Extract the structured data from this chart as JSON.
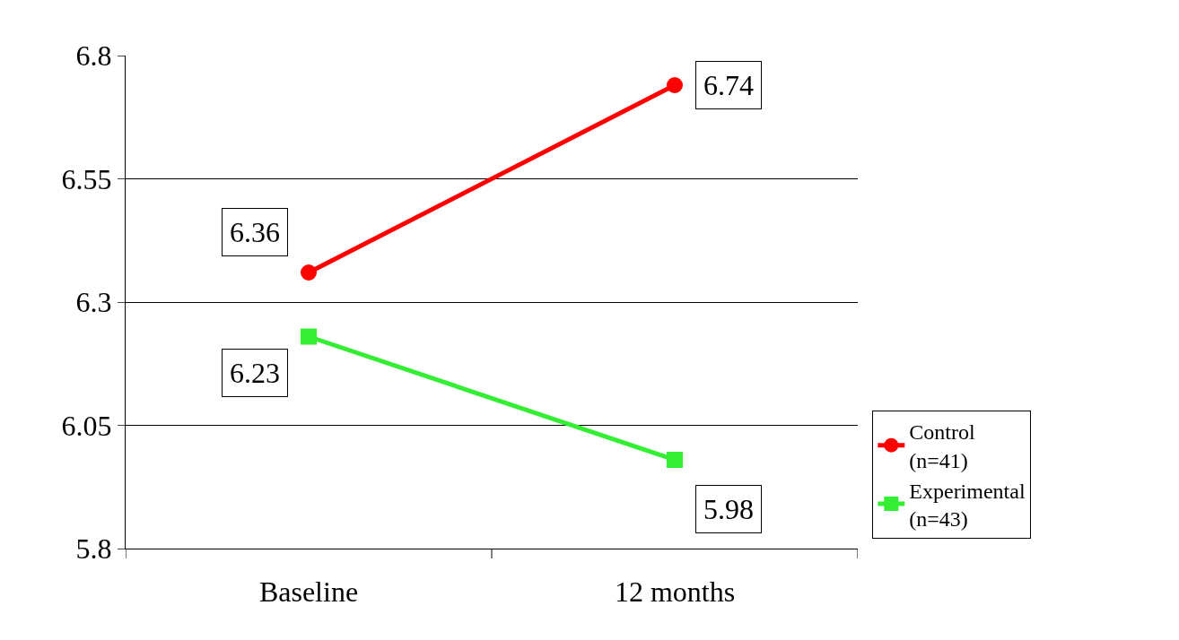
{
  "chart_data": {
    "type": "line",
    "categories": [
      "Baseline",
      "12 months"
    ],
    "series": [
      {
        "name": "Control\n(n=41)",
        "color": "#ff0000",
        "marker": "circle",
        "values": [
          6.36,
          6.74
        ]
      },
      {
        "name": "Experimental\n(n=43)",
        "color": "#33ee33",
        "marker": "square",
        "values": [
          6.23,
          5.98
        ]
      }
    ],
    "ylim": [
      5.8,
      6.8
    ],
    "yticks": [
      5.8,
      6.05,
      6.3,
      6.55,
      6.8
    ],
    "grid": "y",
    "legend": "right",
    "data_labels": true,
    "line_style": "solid"
  }
}
